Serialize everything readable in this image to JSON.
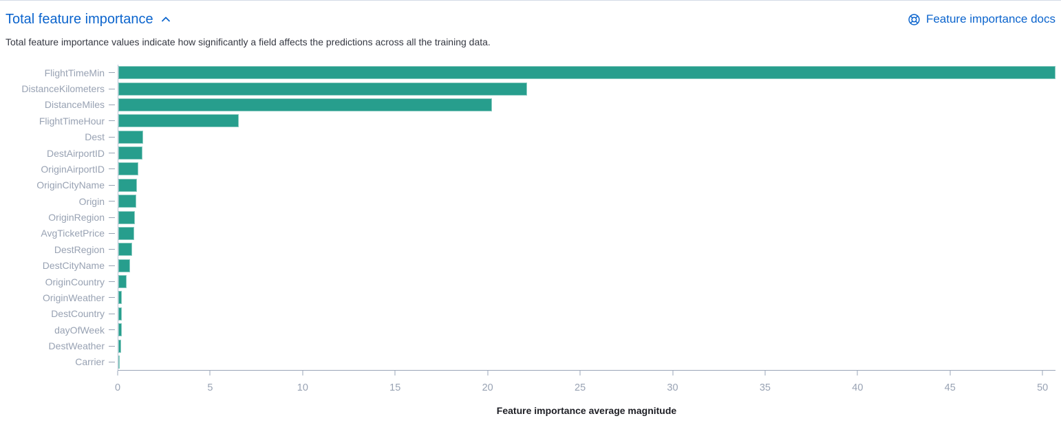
{
  "header": {
    "title": "Total feature importance",
    "collapse_icon": "chevron-up-icon",
    "docs_link_label": "Feature importance docs",
    "docs_link_icon": "help-lifering-icon"
  },
  "description": "Total feature importance values indicate how significantly a field affects the predictions across all the training data.",
  "colors": {
    "link_blue": "#0b64cd",
    "bar_teal": "#279e8d",
    "axis_line": "#9aa5b8",
    "y_axis_line": "#bcc5d6",
    "tick_label_gray": "#98a2b3",
    "body_text": "#343741",
    "top_border": "#d3dae6"
  },
  "chart_data": {
    "type": "bar",
    "orientation": "horizontal",
    "title": "",
    "xlabel": "Feature importance average magnitude",
    "ylabel": "",
    "grid": false,
    "legend": "none",
    "bar_color": "#279e8d",
    "xlim": [
      0,
      50.7
    ],
    "xticks": [
      0,
      5,
      10,
      15,
      20,
      25,
      30,
      35,
      40,
      45,
      50
    ],
    "categories": [
      "FlightTimeMin",
      "DistanceKilometers",
      "DistanceMiles",
      "FlightTimeHour",
      "Dest",
      "DestAirportID",
      "OriginAirportID",
      "OriginCityName",
      "Origin",
      "OriginRegion",
      "AvgTicketPrice",
      "DestRegion",
      "DestCityName",
      "OriginCountry",
      "OriginWeather",
      "DestCountry",
      "dayOfWeek",
      "DestWeather",
      "Carrier"
    ],
    "values": [
      50.7,
      22.1,
      20.2,
      6.5,
      1.35,
      1.32,
      1.08,
      1.0,
      0.95,
      0.9,
      0.85,
      0.73,
      0.64,
      0.44,
      0.2,
      0.18,
      0.17,
      0.15,
      0.04
    ]
  }
}
